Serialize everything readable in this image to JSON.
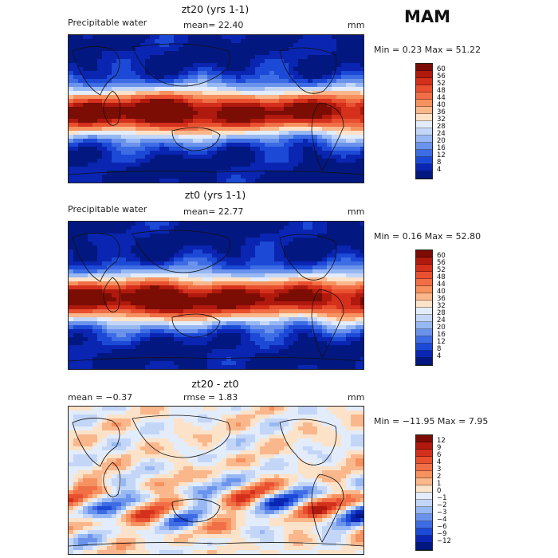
{
  "season": "MAM",
  "panels": [
    {
      "title": "zt20 (yrs 1-1)",
      "variable": "Precipitable water",
      "stat_text": "mean=  22.40",
      "units": "mm",
      "minmax": "Min =   0.23 Max =  51.22",
      "colorbar": {
        "labels": [
          "60",
          "56",
          "52",
          "48",
          "44",
          "40",
          "36",
          "32",
          "28",
          "24",
          "20",
          "16",
          "12",
          "8",
          "4"
        ],
        "colors": [
          "#7b0d05",
          "#b0190d",
          "#d4301c",
          "#e8502f",
          "#f16f46",
          "#f6925f",
          "#fab78c",
          "#fce2c8",
          "#e3ecfa",
          "#c4d6f7",
          "#97b8f3",
          "#6b93ec",
          "#3d6ce4",
          "#1c49d6",
          "#0a25b2",
          "#031780"
        ]
      },
      "map_kind": "precip_a"
    },
    {
      "title": "zt0 (yrs 1-1)",
      "variable": "Precipitable water",
      "stat_text": "mean=  22.77",
      "units": "mm",
      "minmax": "Min =   0.16 Max =  52.80",
      "colorbar": {
        "labels": [
          "60",
          "56",
          "52",
          "48",
          "44",
          "40",
          "36",
          "32",
          "28",
          "24",
          "20",
          "16",
          "12",
          "8",
          "4"
        ],
        "colors": [
          "#7b0d05",
          "#b0190d",
          "#d4301c",
          "#e8502f",
          "#f16f46",
          "#f6925f",
          "#fab78c",
          "#fce2c8",
          "#e3ecfa",
          "#c4d6f7",
          "#97b8f3",
          "#6b93ec",
          "#3d6ce4",
          "#1c49d6",
          "#0a25b2",
          "#031780"
        ]
      },
      "map_kind": "precip_b"
    },
    {
      "title": "zt20 - zt0",
      "stat_text_left": "mean =   −0.37",
      "stat_text": "rmse =    1.83",
      "units": "mm",
      "minmax": "Min = −11.95 Max =    7.95",
      "colorbar": {
        "labels": [
          "12",
          "9",
          "6",
          "4",
          "3",
          "2",
          "1",
          "0",
          "−1",
          "−2",
          "−3",
          "−4",
          "−6",
          "−9",
          "−12"
        ],
        "colors": [
          "#7b0d05",
          "#b0190d",
          "#d4301c",
          "#e8502f",
          "#f16f46",
          "#f6925f",
          "#fab78c",
          "#fce2c8",
          "#e3ecfa",
          "#c4d6f7",
          "#97b8f3",
          "#6b93ec",
          "#3d6ce4",
          "#1c49d6",
          "#0a25b2",
          "#031780"
        ]
      },
      "map_kind": "diff"
    }
  ]
}
